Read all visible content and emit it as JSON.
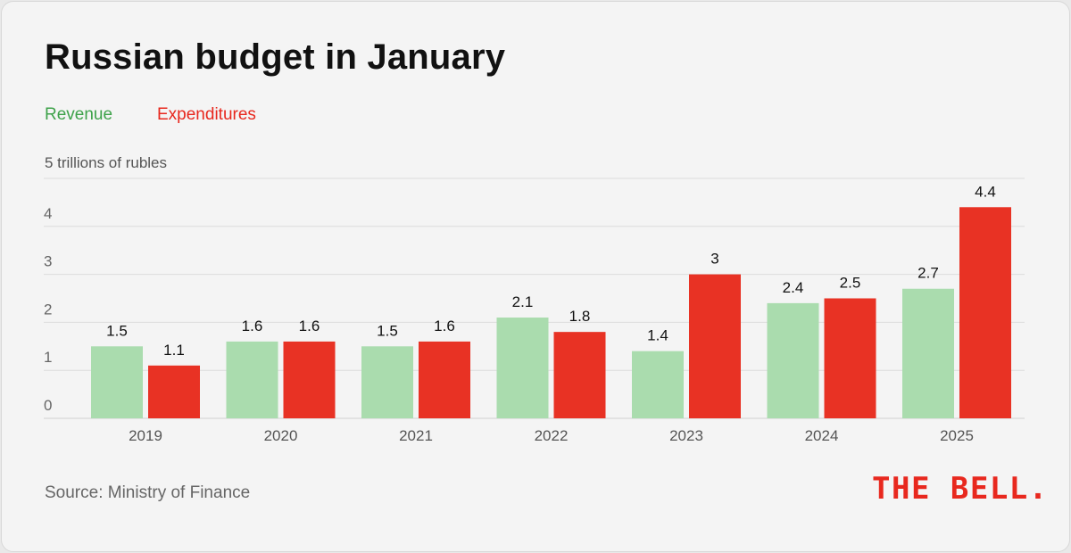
{
  "title": "Russian budget in January",
  "source": "Source: Ministry of Finance",
  "logo_text": "THE BELL.",
  "colors": {
    "revenue": "#aadcae",
    "expenditures": "#e83224",
    "revenue_text": "#3ea24a",
    "expenditures_text": "#e8281e"
  },
  "chart_data": {
    "type": "bar",
    "title": "Russian budget in January",
    "ylabel": "trillions of rubles",
    "unit_label": "5 trillions of rubles",
    "categories": [
      "2019",
      "2020",
      "2021",
      "2022",
      "2023",
      "2024",
      "2025"
    ],
    "series": [
      {
        "name": "Revenue",
        "values": [
          1.5,
          1.6,
          1.5,
          2.1,
          1.4,
          2.4,
          2.7
        ],
        "labels": [
          "1.5",
          "1.6",
          "1.5",
          "2.1",
          "1.4",
          "2.4",
          "2.7"
        ]
      },
      {
        "name": "Expenditures",
        "values": [
          1.1,
          1.6,
          1.6,
          1.8,
          3.0,
          2.5,
          4.4
        ],
        "labels": [
          "1.1",
          "1.6",
          "1.6",
          "1.8",
          "3",
          "2.5",
          "4.4"
        ]
      }
    ],
    "yticks": [
      "0",
      "1",
      "2",
      "3",
      "4"
    ],
    "ylim": [
      0,
      5
    ],
    "grid": true,
    "legend_position": "top-left"
  }
}
